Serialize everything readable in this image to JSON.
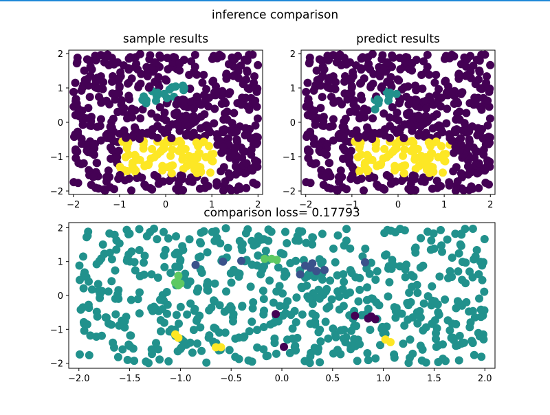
{
  "figure_title": "inference comparison",
  "chart_data": [
    {
      "type": "scatter",
      "title": "sample results",
      "xlim": [
        -2.1,
        2.1
      ],
      "ylim": [
        -2.1,
        2.1
      ],
      "x_ticks": [
        -2,
        -1,
        0,
        1,
        2
      ],
      "y_ticks": [
        -2,
        -1,
        0,
        1,
        2
      ],
      "colormap": "viridis",
      "classes": [
        {
          "value": 0,
          "color": "#440154",
          "region": "background, x in [-2, 2], y in [-2, 2]"
        },
        {
          "value": 1,
          "color": "#21918c",
          "region": "band from (-0.5, 0.6) to (0.45, 1.05)"
        },
        {
          "value": 2,
          "color": "#fde725",
          "region": "x in [-1.0, 1.05], y in [-1.5, -0.5]"
        }
      ],
      "point_count_approx": 600,
      "grid": false
    },
    {
      "type": "scatter",
      "title": "predict results",
      "xlim": [
        -2.1,
        2.1
      ],
      "ylim": [
        -2.1,
        2.1
      ],
      "x_ticks": [
        -2,
        -1,
        0,
        1,
        2
      ],
      "y_ticks": [
        -2,
        -1,
        0,
        1,
        2
      ],
      "colormap": "viridis",
      "classes": [
        {
          "value": 0,
          "color": "#440154",
          "region": "background"
        },
        {
          "value": 1,
          "color": "#21918c",
          "region": "band from (-0.5, 0.4) to (0.05, 1.05)"
        },
        {
          "value": 2,
          "color": "#fde725",
          "region": "x in [-0.95, 1.15], y in [-1.5, -0.5]"
        }
      ],
      "point_count_approx": 600,
      "grid": false
    },
    {
      "type": "scatter",
      "title": "comparison loss= 0.17793",
      "xlim": [
        -2.1,
        2.1
      ],
      "ylim": [
        -2.15,
        2.15
      ],
      "x_ticks": [
        -2.0,
        -1.5,
        -1.0,
        -0.5,
        0.0,
        0.5,
        1.0,
        1.5,
        2.0
      ],
      "x_tick_labels": [
        "-2.0",
        "-1.5",
        "-1.0",
        "-0.5",
        "0.0",
        "0.5",
        "1.0",
        "1.5",
        "2.0"
      ],
      "y_ticks": [
        -2,
        -1,
        0,
        1,
        2
      ],
      "colormap": "viridis",
      "base_color": "#21918c",
      "point_count_approx": 600,
      "diff_points": [
        {
          "x": -1.02,
          "y": 0.58,
          "c": "#5ec962"
        },
        {
          "x": -1.05,
          "y": 0.38,
          "c": "#5ec962"
        },
        {
          "x": -1.0,
          "y": 0.35,
          "c": "#5ec962"
        },
        {
          "x": -1.02,
          "y": 0.3,
          "c": "#5ec962"
        },
        {
          "x": -0.85,
          "y": 0.9,
          "c": "#3b528b"
        },
        {
          "x": -0.58,
          "y": 1.0,
          "c": "#3b528b"
        },
        {
          "x": -0.4,
          "y": 1.02,
          "c": "#3b528b"
        },
        {
          "x": -0.17,
          "y": 1.08,
          "c": "#5ec962"
        },
        {
          "x": -0.1,
          "y": 1.08,
          "c": "#5ec962"
        },
        {
          "x": -0.05,
          "y": 1.05,
          "c": "#5ec962"
        },
        {
          "x": 0.23,
          "y": 0.88,
          "c": "#3b528b"
        },
        {
          "x": 0.3,
          "y": 0.95,
          "c": "#3b528b"
        },
        {
          "x": 0.34,
          "y": 0.72,
          "c": "#3b528b"
        },
        {
          "x": 0.42,
          "y": 0.75,
          "c": "#3b528b"
        },
        {
          "x": 0.18,
          "y": 0.62,
          "c": "#3b528b"
        },
        {
          "x": 0.82,
          "y": 0.98,
          "c": "#3b528b"
        },
        {
          "x": 0.28,
          "y": 0.82,
          "c": "#3b528b"
        },
        {
          "x": -0.06,
          "y": -0.55,
          "c": "#440154"
        },
        {
          "x": 0.02,
          "y": -1.52,
          "c": "#440154"
        },
        {
          "x": 0.72,
          "y": -0.6,
          "c": "#440154"
        },
        {
          "x": 0.85,
          "y": -0.68,
          "c": "#440154"
        },
        {
          "x": 0.92,
          "y": -0.7,
          "c": "#440154"
        },
        {
          "x": 0.88,
          "y": -0.62,
          "c": "#440154"
        },
        {
          "x": -1.05,
          "y": -1.15,
          "c": "#fde725"
        },
        {
          "x": -1.02,
          "y": -1.25,
          "c": "#fde725"
        },
        {
          "x": -0.65,
          "y": -1.53,
          "c": "#fde725"
        },
        {
          "x": -0.6,
          "y": -1.53,
          "c": "#fde725"
        },
        {
          "x": 1.02,
          "y": -1.3,
          "c": "#fde725"
        },
        {
          "x": 1.07,
          "y": -1.38,
          "c": "#fde725"
        }
      ],
      "grid": false
    }
  ]
}
